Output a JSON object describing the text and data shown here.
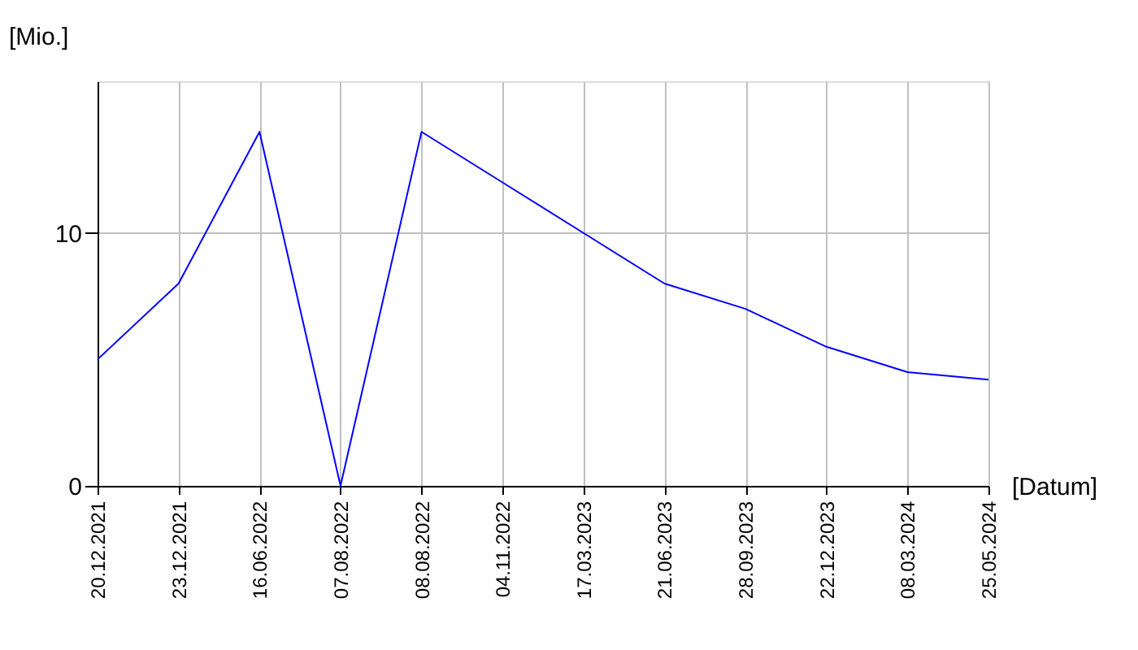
{
  "chart_data": {
    "type": "line",
    "xlabel": "[Datum]",
    "ylabel": "[Mio.]",
    "categories": [
      "20.12.2021",
      "23.12.2021",
      "16.06.2022",
      "07.08.2022",
      "08.08.2022",
      "04.11.2022",
      "17.03.2023",
      "21.06.2023",
      "28.09.2023",
      "22.12.2023",
      "08.03.2024",
      "25.05.2024"
    ],
    "series": [
      {
        "color": "#0000ff",
        "values": [
          5,
          8,
          14,
          0,
          14,
          12,
          10,
          8,
          7,
          5.5,
          4.5,
          4.2
        ]
      }
    ],
    "ylim": [
      0,
      16
    ],
    "yticks": [
      0,
      10
    ],
    "grid": true,
    "marker": "none",
    "line_style": "solid"
  }
}
